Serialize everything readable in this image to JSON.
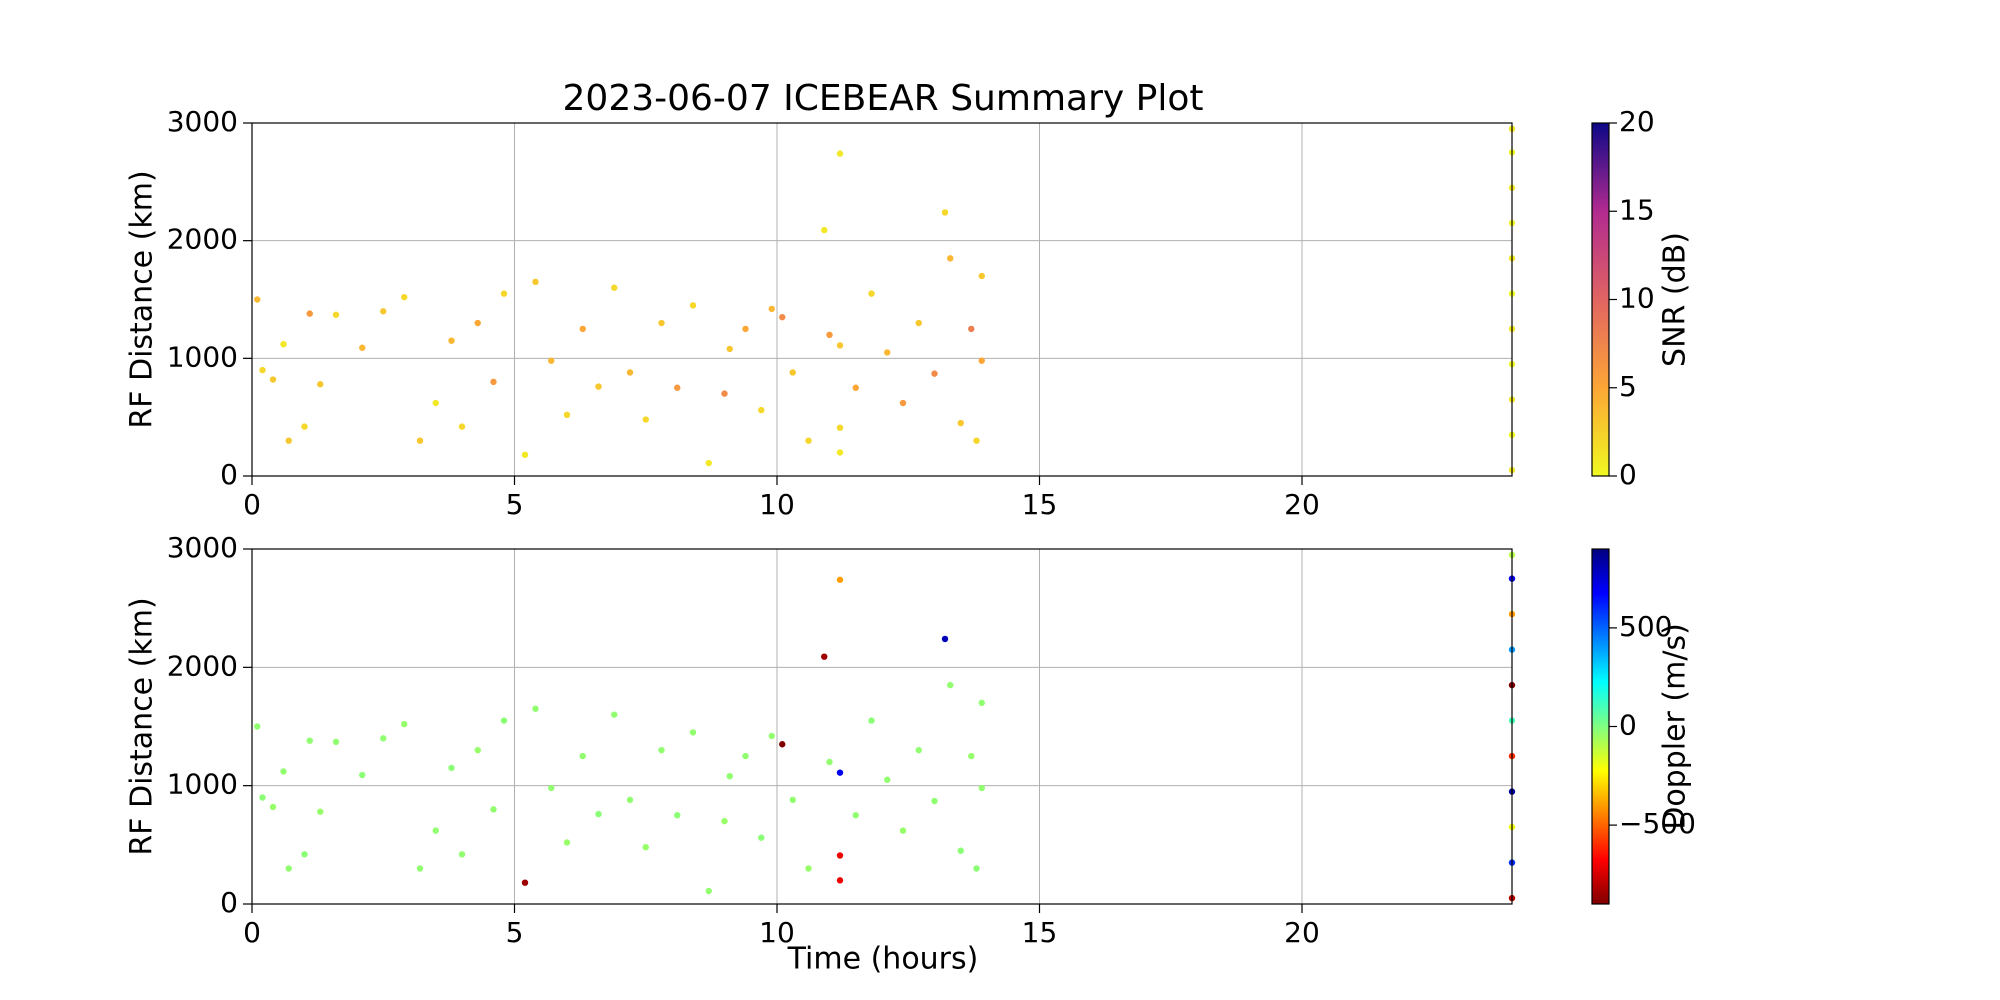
{
  "chart_data": [
    {
      "type": "scatter",
      "title": "2023-06-07 ICEBEAR Summary Plot",
      "ylabel": "RF Distance (km)",
      "xlim": [
        0,
        24
      ],
      "xticks": [
        0,
        5,
        10,
        15,
        20
      ],
      "ylim": [
        0,
        3000
      ],
      "yticks": [
        0,
        1000,
        2000,
        3000
      ],
      "grid": true,
      "x": [
        0.1,
        0.2,
        0.4,
        0.6,
        0.7,
        1.0,
        1.1,
        1.3,
        1.6,
        2.1,
        2.5,
        2.9,
        3.2,
        3.5,
        3.8,
        4.0,
        4.3,
        4.6,
        4.8,
        5.2,
        5.4,
        5.7,
        6.0,
        6.3,
        6.6,
        6.9,
        7.2,
        7.5,
        7.8,
        8.1,
        8.4,
        8.7,
        9.0,
        9.1,
        9.4,
        9.7,
        9.9,
        10.1,
        10.3,
        10.6,
        10.9,
        11.0,
        11.2,
        11.2,
        11.2,
        11.2,
        11.5,
        11.8,
        12.1,
        12.4,
        12.7,
        13.0,
        13.2,
        13.3,
        13.5,
        13.7,
        13.9,
        13.9,
        13.8,
        24,
        24,
        24,
        24,
        24,
        24,
        24,
        24,
        24,
        24,
        24
      ],
      "values": [
        1500,
        900,
        820,
        1120,
        300,
        420,
        1380,
        780,
        1370,
        1090,
        1400,
        1520,
        300,
        620,
        1150,
        420,
        1300,
        800,
        1550,
        180,
        1650,
        980,
        520,
        1250,
        760,
        1600,
        880,
        480,
        1300,
        750,
        1450,
        110,
        700,
        1080,
        1250,
        560,
        1420,
        1350,
        880,
        300,
        2090,
        1200,
        2740,
        1110,
        410,
        200,
        750,
        1550,
        1050,
        620,
        1300,
        870,
        2240,
        1850,
        450,
        1250,
        1700,
        980,
        300,
        50,
        350,
        650,
        950,
        1250,
        1550,
        1850,
        2150,
        2450,
        2750,
        2950
      ],
      "color_values": [
        4,
        2,
        3,
        1,
        3,
        2,
        6,
        3,
        2,
        4,
        3,
        2,
        3,
        1,
        4,
        2,
        5,
        6,
        2,
        1,
        3,
        4,
        2,
        5,
        3,
        2,
        4,
        2,
        3,
        6,
        2,
        1,
        7,
        3,
        5,
        2,
        4,
        7,
        3,
        2,
        1,
        6,
        1,
        3,
        2,
        1,
        5,
        2,
        4,
        6,
        3,
        7,
        2,
        4,
        3,
        8,
        3,
        5,
        2,
        1,
        0,
        1,
        0,
        1,
        0,
        1,
        0,
        1,
        0,
        1
      ],
      "colorbar": {
        "label": "SNR (dB)",
        "lim": [
          0,
          20
        ],
        "ticks": [
          0,
          5,
          10,
          15,
          20
        ],
        "colors": [
          "#f0f921",
          "#fca636",
          "#e16462",
          "#b12a90",
          "#0d0887"
        ]
      }
    },
    {
      "type": "scatter",
      "ylabel": "RF Distance (km)",
      "xlabel": "Time (hours)",
      "xlim": [
        0,
        24
      ],
      "xticks": [
        0,
        5,
        10,
        15,
        20
      ],
      "ylim": [
        0,
        3000
      ],
      "yticks": [
        0,
        1000,
        2000,
        3000
      ],
      "grid": true,
      "x": [
        0.1,
        0.2,
        0.4,
        0.6,
        0.7,
        1.0,
        1.1,
        1.3,
        1.6,
        2.1,
        2.5,
        2.9,
        3.2,
        3.5,
        3.8,
        4.0,
        4.3,
        4.6,
        4.8,
        5.2,
        5.4,
        5.7,
        6.0,
        6.3,
        6.6,
        6.9,
        7.2,
        7.5,
        7.8,
        8.1,
        8.4,
        8.7,
        9.0,
        9.1,
        9.4,
        9.7,
        9.9,
        10.1,
        10.3,
        10.6,
        10.9,
        11.0,
        11.2,
        11.2,
        11.2,
        11.2,
        11.5,
        11.8,
        12.1,
        12.4,
        12.7,
        13.0,
        13.2,
        13.3,
        13.5,
        13.7,
        13.9,
        13.9,
        13.8,
        24,
        24,
        24,
        24,
        24,
        24,
        24,
        24,
        24,
        24,
        24
      ],
      "values": [
        1500,
        900,
        820,
        1120,
        300,
        420,
        1380,
        780,
        1370,
        1090,
        1400,
        1520,
        300,
        620,
        1150,
        420,
        1300,
        800,
        1550,
        180,
        1650,
        980,
        520,
        1250,
        760,
        1600,
        880,
        480,
        1300,
        750,
        1450,
        110,
        700,
        1080,
        1250,
        560,
        1420,
        1350,
        880,
        300,
        2090,
        1200,
        2740,
        1110,
        410,
        200,
        750,
        1550,
        1050,
        620,
        1300,
        870,
        2240,
        1850,
        450,
        1250,
        1700,
        980,
        300,
        50,
        350,
        650,
        950,
        1250,
        1550,
        1850,
        2150,
        2450,
        2750,
        2950
      ],
      "color_values": [
        -30,
        -20,
        -40,
        -30,
        -30,
        -20,
        -30,
        -40,
        -30,
        -20,
        -30,
        -40,
        -30,
        -30,
        -20,
        -30,
        -40,
        -30,
        -20,
        -850,
        -30,
        -30,
        -40,
        -30,
        -20,
        -30,
        -30,
        -40,
        -30,
        -20,
        -30,
        -30,
        -40,
        -30,
        -30,
        -20,
        -30,
        -900,
        -30,
        -40,
        -850,
        -30,
        -400,
        700,
        -700,
        -700,
        -30,
        -20,
        -30,
        -40,
        -30,
        -30,
        800,
        -30,
        -20,
        -40,
        -30,
        -30,
        -20,
        -800,
        600,
        -200,
        850,
        -600,
        100,
        -900,
        400,
        -400,
        700,
        -100
      ],
      "colorbar": {
        "label": "Doppler (m/s)",
        "lim": [
          -900,
          900
        ],
        "ticks": [
          {
            "value": -500,
            "label": "−500"
          },
          0,
          500
        ],
        "colors": [
          "#800000",
          "#ff0000",
          "#ff8000",
          "#ffff00",
          "#80ff80",
          "#00ffff",
          "#0080ff",
          "#0000ff",
          "#000080"
        ]
      }
    }
  ]
}
